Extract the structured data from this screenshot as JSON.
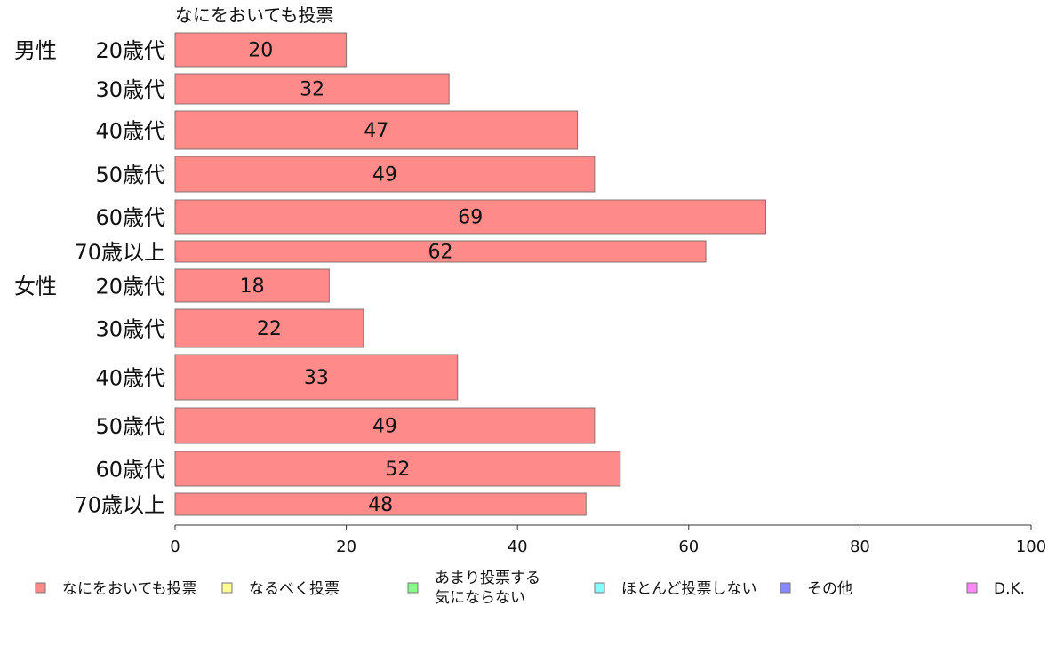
{
  "chart_data": {
    "type": "bar",
    "orientation": "horizontal",
    "title": "なにをおいても投票",
    "groups": [
      {
        "label": "男性",
        "start": 0
      },
      {
        "label": "女性",
        "start": 6
      }
    ],
    "categories": [
      "20歳代",
      "30歳代",
      "40歳代",
      "50歳代",
      "60歳代",
      "70歳以上",
      "20歳代",
      "30歳代",
      "40歳代",
      "50歳代",
      "60歳代",
      "70歳以上"
    ],
    "series": [
      {
        "name": "なにをおいても投票",
        "color": "#ff8a8a",
        "values": [
          20,
          32,
          47,
          49,
          69,
          62,
          18,
          22,
          33,
          49,
          52,
          48
        ]
      }
    ],
    "xlim": [
      0,
      100
    ],
    "xticks": [
      0,
      20,
      40,
      60,
      80,
      100
    ],
    "grid": false,
    "legend": {
      "placement": "bottom",
      "entries": [
        {
          "lines": [
            "なにをおいても投票"
          ],
          "color": "#ff8a8a"
        },
        {
          "lines": [
            "なるべく投票"
          ],
          "color": "#ffff99"
        },
        {
          "lines": [
            "あまり投票する",
            "気にならない"
          ],
          "color": "#88ff88"
        },
        {
          "lines": [
            "ほとんど投票しない"
          ],
          "color": "#88ffff"
        },
        {
          "lines": [
            "その他"
          ],
          "color": "#8888ff"
        },
        {
          "lines": [
            "D.K."
          ],
          "color": "#ff88ff"
        }
      ]
    }
  }
}
